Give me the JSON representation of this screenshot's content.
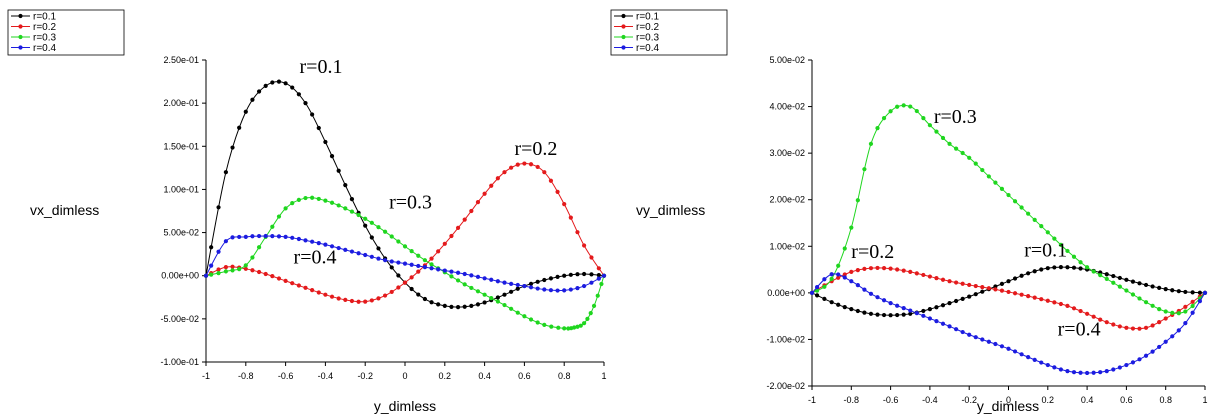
{
  "chart_data": [
    {
      "type": "line",
      "xlabel": "y_dimless",
      "ylabel": "vx_dimless",
      "xlim": [
        -1,
        1
      ],
      "ylim": [
        -0.1,
        0.25
      ],
      "xticks": [
        -1,
        -0.8,
        -0.6,
        -0.4,
        -0.2,
        0,
        0.2,
        0.4,
        0.6,
        0.8,
        1
      ],
      "xtick_labels": [
        "-1",
        "-0.8",
        "-0.6",
        "-0.4",
        "-0.2",
        "0",
        "0.2",
        "0.4",
        "0.6",
        "0.8",
        "1"
      ],
      "yticks": [
        -0.1,
        -0.05,
        0,
        0.05,
        0.1,
        0.15,
        0.2,
        0.25
      ],
      "ytick_labels": [
        "-1.00e-01",
        "-5.00e-02",
        "0.00e+00",
        "5.00e-02",
        "1.00e-01",
        "1.50e-01",
        "2.00e-01",
        "2.50e-01"
      ],
      "grid": false,
      "legend_position": "outside-top-left",
      "series": [
        {
          "name": "r=0.1",
          "color": "#000000",
          "x": [
            -1,
            -0.9,
            -0.8,
            -0.7,
            -0.6,
            -0.5,
            -0.4,
            -0.3,
            -0.2,
            -0.1,
            0,
            0.1,
            0.2,
            0.3,
            0.4,
            0.5,
            0.6,
            0.7,
            0.8,
            0.9,
            1
          ],
          "y": [
            0,
            0.12,
            0.19,
            0.22,
            0.223,
            0.2,
            0.155,
            0.105,
            0.058,
            0.02,
            -0.008,
            -0.027,
            -0.035,
            -0.036,
            -0.031,
            -0.022,
            -0.012,
            -0.005,
            0,
            0.002,
            0
          ]
        },
        {
          "name": "r=0.2",
          "color": "#e41a1c",
          "x": [
            -1,
            -0.9,
            -0.8,
            -0.7,
            -0.6,
            -0.5,
            -0.4,
            -0.3,
            -0.2,
            -0.1,
            0,
            0.1,
            0.2,
            0.3,
            0.4,
            0.5,
            0.6,
            0.7,
            0.8,
            0.9,
            1
          ],
          "y": [
            0,
            0.01,
            0.008,
            0.002,
            -0.006,
            -0.014,
            -0.022,
            -0.028,
            -0.03,
            -0.023,
            -0.008,
            0.012,
            0.037,
            0.065,
            0.095,
            0.12,
            0.13,
            0.12,
            0.083,
            0.035,
            0
          ]
        },
        {
          "name": "r=0.3",
          "color": "#1fd61f",
          "x": [
            -1,
            -0.9,
            -0.8,
            -0.7,
            -0.6,
            -0.5,
            -0.4,
            -0.3,
            -0.2,
            -0.1,
            0,
            0.1,
            0.2,
            0.3,
            0.4,
            0.5,
            0.6,
            0.7,
            0.8,
            0.85,
            0.9,
            0.95,
            1
          ],
          "y": [
            0,
            0.005,
            0.012,
            0.045,
            0.078,
            0.09,
            0.087,
            0.078,
            0.066,
            0.051,
            0.034,
            0.018,
            0.004,
            -0.01,
            -0.022,
            -0.034,
            -0.047,
            -0.057,
            -0.061,
            -0.06,
            -0.055,
            -0.035,
            0
          ]
        },
        {
          "name": "r=0.4",
          "color": "#1c1ce0",
          "x": [
            -1,
            -0.9,
            -0.8,
            -0.7,
            -0.6,
            -0.5,
            -0.4,
            -0.3,
            -0.2,
            -0.1,
            0,
            0.1,
            0.2,
            0.3,
            0.4,
            0.5,
            0.6,
            0.7,
            0.8,
            0.9,
            1
          ],
          "y": [
            0,
            0.04,
            0.045,
            0.046,
            0.045,
            0.041,
            0.036,
            0.03,
            0.024,
            0.018,
            0.014,
            0.01,
            0.006,
            0.002,
            -0.003,
            -0.008,
            -0.012,
            -0.016,
            -0.017,
            -0.012,
            0
          ]
        }
      ],
      "annotations": [
        {
          "text": "r=0.1",
          "x": -0.53,
          "y": 0.235
        },
        {
          "text": "r=0.2",
          "x": 0.55,
          "y": 0.14
        },
        {
          "text": "r=0.3",
          "x": -0.08,
          "y": 0.078
        },
        {
          "text": "r=0.4",
          "x": -0.56,
          "y": 0.014
        }
      ]
    },
    {
      "type": "line",
      "xlabel": "y_dimless",
      "ylabel": "vy_dimless",
      "xlim": [
        -1,
        1
      ],
      "ylim": [
        -0.02,
        0.05
      ],
      "xticks": [
        -1,
        -0.8,
        -0.6,
        -0.4,
        -0.2,
        0,
        0.2,
        0.4,
        0.6,
        0.8,
        1
      ],
      "xtick_labels": [
        "-1",
        "-0.8",
        "-0.6",
        "-0.4",
        "-0.2",
        "0",
        "0.2",
        "0.4",
        "0.6",
        "0.8",
        "1"
      ],
      "yticks": [
        -0.02,
        -0.01,
        0,
        0.01,
        0.02,
        0.03,
        0.04,
        0.05
      ],
      "ytick_labels": [
        "-2.00e-02",
        "-1.00e-02",
        "0.00e+00",
        "1.00e-02",
        "2.00e-02",
        "3.00e-02",
        "4.00e-02",
        "5.00e-02"
      ],
      "grid": false,
      "legend_position": "outside-top-left",
      "series": [
        {
          "name": "r=0.1",
          "color": "#000000",
          "x": [
            -1,
            -0.9,
            -0.8,
            -0.7,
            -0.6,
            -0.5,
            -0.4,
            -0.3,
            -0.2,
            -0.1,
            0,
            0.1,
            0.2,
            0.3,
            0.4,
            0.5,
            0.6,
            0.7,
            0.8,
            0.9,
            1
          ],
          "y": [
            0,
            -0.002,
            -0.0035,
            -0.0045,
            -0.0048,
            -0.0045,
            -0.0035,
            -0.0022,
            -0.0008,
            0.0008,
            0.0025,
            0.0042,
            0.0053,
            0.0055,
            0.005,
            0.004,
            0.0028,
            0.0017,
            0.0008,
            0.0002,
            0
          ]
        },
        {
          "name": "r=0.2",
          "color": "#e41a1c",
          "x": [
            -1,
            -0.9,
            -0.8,
            -0.7,
            -0.6,
            -0.5,
            -0.4,
            -0.3,
            -0.2,
            -0.1,
            0,
            0.1,
            0.2,
            0.3,
            0.4,
            0.5,
            0.6,
            0.7,
            0.8,
            0.9,
            1
          ],
          "y": [
            0,
            0.0025,
            0.0045,
            0.0053,
            0.0052,
            0.0045,
            0.0035,
            0.0025,
            0.0017,
            0.001,
            0.0002,
            -0.0007,
            -0.0017,
            -0.0028,
            -0.0045,
            -0.0063,
            -0.0075,
            -0.0075,
            -0.0055,
            -0.003,
            0
          ]
        },
        {
          "name": "r=0.3",
          "color": "#1fd61f",
          "x": [
            -1,
            -0.9,
            -0.8,
            -0.7,
            -0.6,
            -0.5,
            -0.4,
            -0.3,
            -0.2,
            -0.1,
            0,
            0.1,
            0.2,
            0.3,
            0.4,
            0.5,
            0.6,
            0.7,
            0.8,
            0.9,
            1
          ],
          "y": [
            0,
            0.003,
            0.014,
            0.032,
            0.039,
            0.04,
            0.036,
            0.032,
            0.029,
            0.025,
            0.021,
            0.017,
            0.013,
            0.009,
            0.0055,
            0.003,
            0.0005,
            -0.002,
            -0.004,
            -0.004,
            0
          ]
        },
        {
          "name": "r=0.4",
          "color": "#1c1ce0",
          "x": [
            -1,
            -0.9,
            -0.8,
            -0.7,
            -0.6,
            -0.5,
            -0.4,
            -0.3,
            -0.2,
            -0.1,
            0,
            0.1,
            0.2,
            0.3,
            0.4,
            0.5,
            0.6,
            0.7,
            0.8,
            0.9,
            1
          ],
          "y": [
            0,
            0.004,
            0.0025,
            -0.0002,
            -0.0022,
            -0.0038,
            -0.0055,
            -0.0072,
            -0.009,
            -0.0105,
            -0.012,
            -0.0138,
            -0.0155,
            -0.0168,
            -0.0172,
            -0.0168,
            -0.0155,
            -0.0135,
            -0.0105,
            -0.0065,
            0
          ]
        }
      ],
      "annotations": [
        {
          "text": "r=0.3",
          "x": -0.38,
          "y": 0.0365
        },
        {
          "text": "r=0.2",
          "x": -0.8,
          "y": 0.0075
        },
        {
          "text": "r=0.1",
          "x": 0.08,
          "y": 0.0078
        },
        {
          "text": "r=0.4",
          "x": 0.25,
          "y": -0.0092
        }
      ]
    }
  ]
}
